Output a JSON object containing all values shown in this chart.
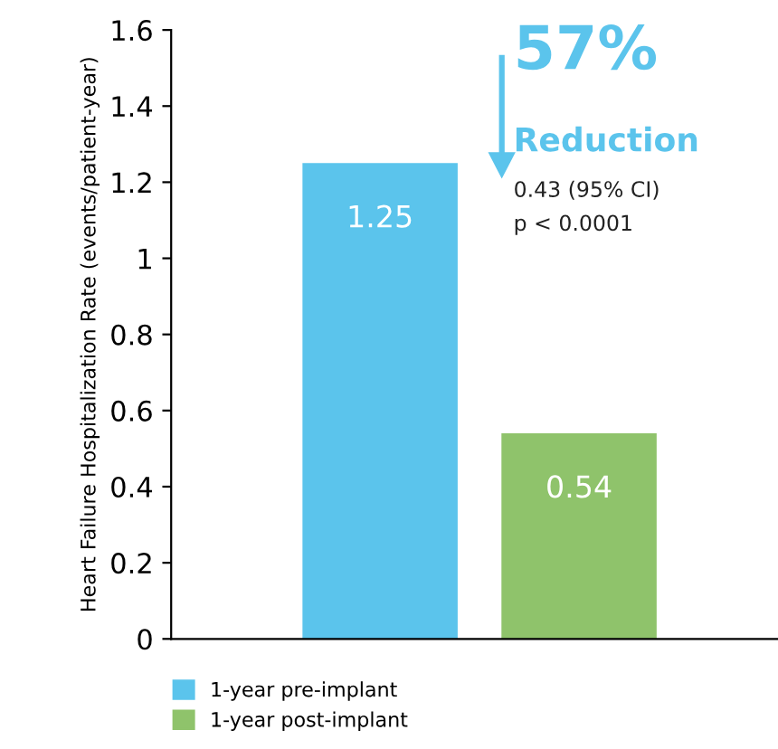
{
  "chart_data": {
    "type": "bar",
    "ylabel": "Heart Failure Hospitalization Rate (events/patient-year)",
    "categories": [
      null,
      null
    ],
    "series": [
      {
        "name": "1-year pre-implant",
        "color": "#5bc4ec",
        "values": [
          1.25,
          null
        ]
      },
      {
        "name": "1-year post-implant",
        "color": "#8fc36b",
        "values": [
          null,
          0.54
        ]
      }
    ],
    "ylim": [
      0,
      1.6
    ],
    "yticks": [
      0,
      0.2,
      0.4,
      0.6,
      0.8,
      1,
      1.2,
      1.4,
      1.6
    ],
    "data_labels": true,
    "grid": false,
    "legend": "bottom",
    "annotations": [
      "57%",
      "Reduction",
      "0.43 (95% CI)",
      "p < 0.0001"
    ]
  }
}
